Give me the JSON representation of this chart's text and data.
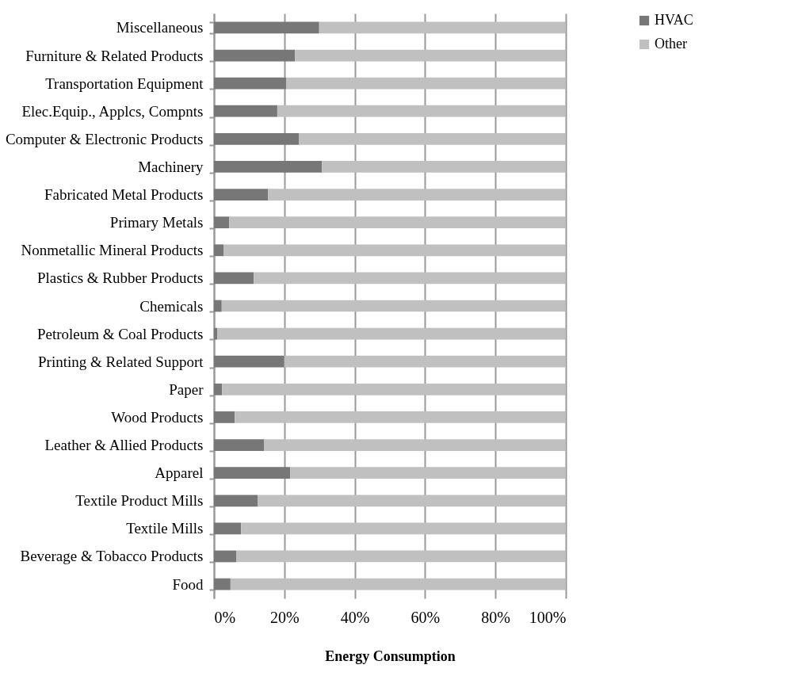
{
  "chart_data": {
    "type": "bar",
    "orientation": "horizontal",
    "stacked": true,
    "xlabel": "Energy Consumption",
    "categories": [
      "Miscellaneous",
      "Furniture & Related Products",
      "Transportation Equipment",
      "Elec.Equip., Applcs, Compnts",
      "Computer & Electronic Products",
      "Machinery",
      "Fabricated Metal Products",
      "Primary Metals",
      "Nonmetallic Mineral Products",
      "Plastics & Rubber Products",
      "Chemicals",
      "Petroleum & Coal Products",
      "Printing & Related Support",
      "Paper",
      "Wood Products",
      "Leather & Allied Products",
      "Apparel",
      "Textile Product Mills",
      "Textile Mills",
      "Beverage & Tobacco Products",
      "Food"
    ],
    "series": [
      {
        "name": "HVAC",
        "color": "#777777",
        "values": [
          29.9,
          23.0,
          20.5,
          18.0,
          24.1,
          30.7,
          15.4,
          4.3,
          2.7,
          11.3,
          2.2,
          1.0,
          20.0,
          2.3,
          5.9,
          14.3,
          21.7,
          12.4,
          7.7,
          6.4,
          4.7
        ]
      },
      {
        "name": "Other",
        "color": "#c0c0c0",
        "values": [
          70.1,
          77.0,
          79.5,
          82.0,
          75.9,
          69.3,
          84.6,
          95.7,
          97.3,
          88.7,
          97.8,
          99.0,
          80.0,
          97.7,
          94.1,
          85.7,
          78.3,
          87.6,
          92.3,
          93.6,
          95.3
        ]
      }
    ],
    "xlim": [
      0,
      100
    ],
    "xticks": [
      {
        "value": 0,
        "label": "0%"
      },
      {
        "value": 20,
        "label": "20%"
      },
      {
        "value": 40,
        "label": "40%"
      },
      {
        "value": 60,
        "label": "60%"
      },
      {
        "value": 80,
        "label": "80%"
      },
      {
        "value": 100,
        "label": "100%"
      }
    ],
    "grid": "x",
    "legend": "right"
  }
}
